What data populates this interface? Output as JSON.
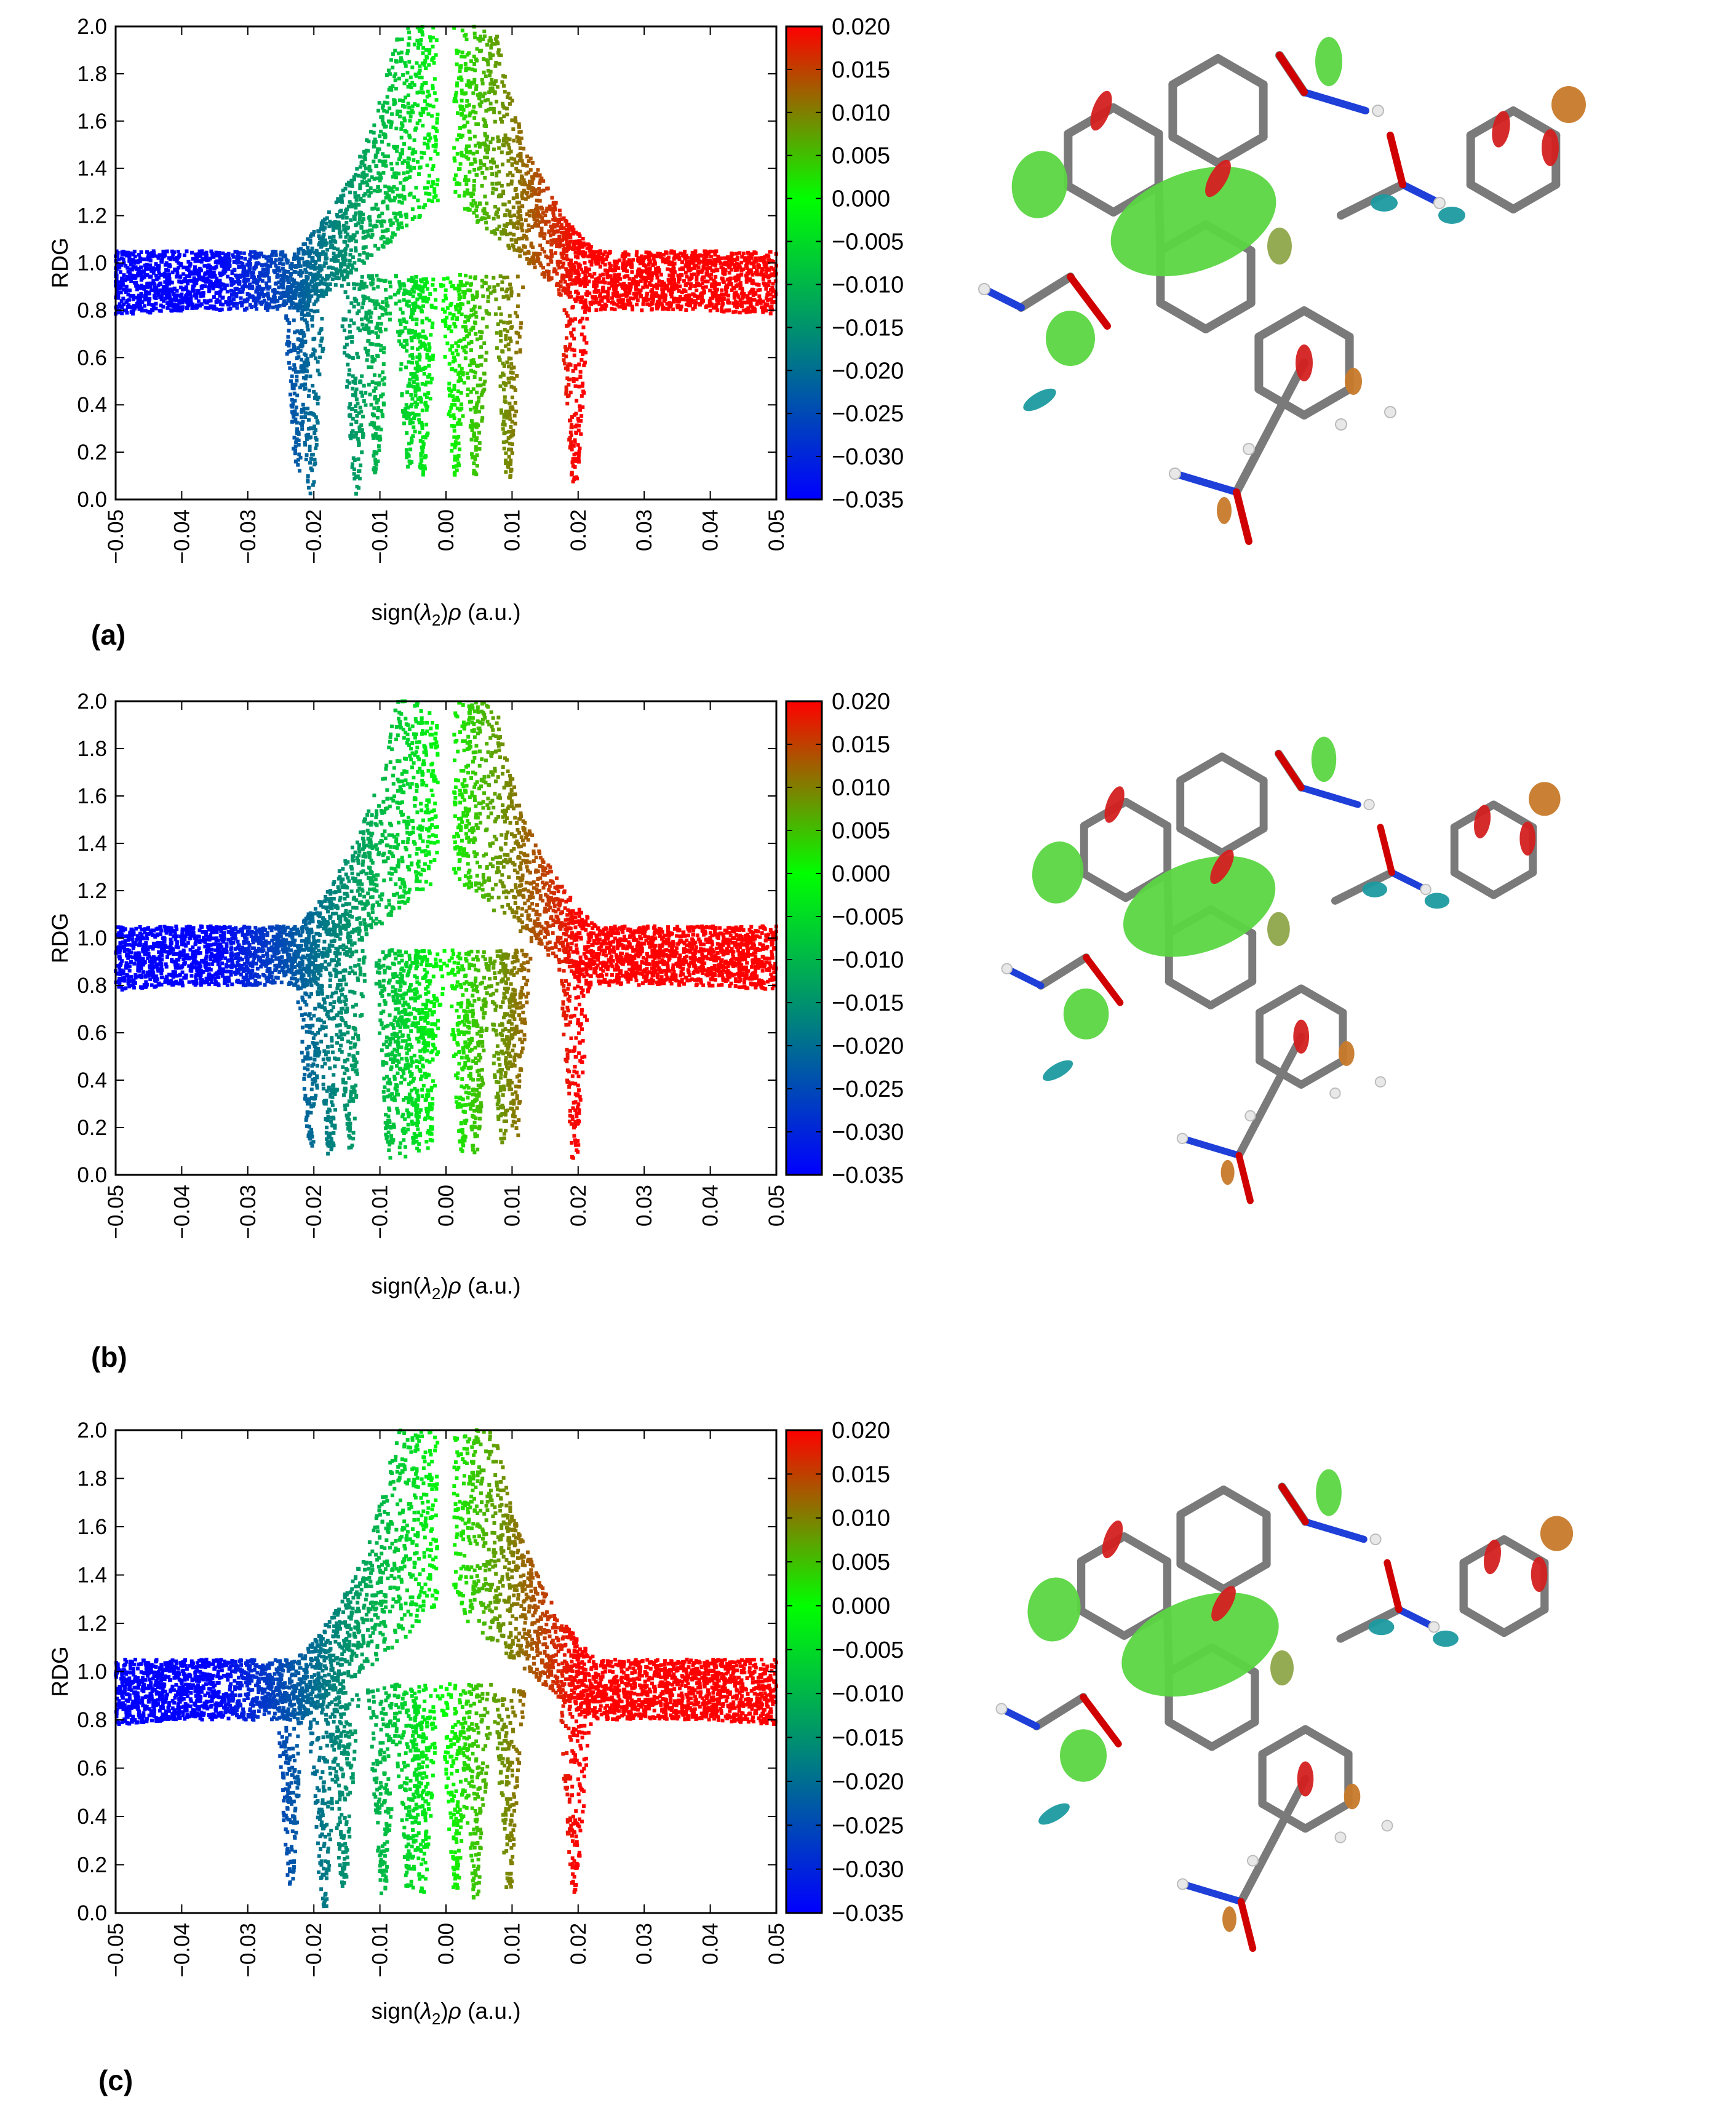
{
  "panels": [
    {
      "label": "(a)"
    },
    {
      "label": "(b)"
    },
    {
      "label": "(c)"
    }
  ],
  "chart_data": [
    {
      "type": "scatter",
      "panel": "(a)",
      "xlabel_parts": [
        "sign(",
        "λ",
        "2",
        ")",
        "ρ",
        " (a.u.)"
      ],
      "ylabel": "RDG",
      "xlim": [
        -0.05,
        0.05
      ],
      "ylim": [
        0.0,
        2.0
      ],
      "x_ticks": [
        "−0.05",
        "−0.04",
        "−0.03",
        "−0.02",
        "−0.01",
        "0.00",
        "0.01",
        "0.02",
        "0.03",
        "0.04",
        "0.05"
      ],
      "x_tick_values": [
        -0.05,
        -0.04,
        -0.03,
        -0.02,
        -0.01,
        0.0,
        0.01,
        0.02,
        0.03,
        0.04,
        0.05
      ],
      "y_ticks": [
        "0.0",
        "0.2",
        "0.4",
        "0.6",
        "0.8",
        "1.0",
        "1.2",
        "1.4",
        "1.6",
        "1.8",
        "2.0"
      ],
      "y_tick_values": [
        0.0,
        0.2,
        0.4,
        0.6,
        0.8,
        1.0,
        1.2,
        1.4,
        1.6,
        1.8,
        2.0
      ],
      "colorbar": {
        "range": [
          -0.035,
          0.02
        ],
        "ticks": [
          "0.020",
          "0.015",
          "0.010",
          "0.005",
          "0.000",
          "−0.005",
          "−0.010",
          "−0.015",
          "−0.020",
          "−0.025",
          "−0.030",
          "−0.035"
        ],
        "tick_values": [
          0.02,
          0.015,
          0.01,
          0.005,
          0.0,
          -0.005,
          -0.01,
          -0.015,
          -0.02,
          -0.025,
          -0.03,
          -0.035
        ],
        "colors": [
          "#0000ff",
          "#00ff00",
          "#ff0000"
        ]
      },
      "spikes": [
        {
          "x": -0.0225,
          "ymin": 0.12
        },
        {
          "x": -0.0205,
          "ymin": 0.02
        },
        {
          "x": -0.0135,
          "ymin": 0.02
        },
        {
          "x": -0.0105,
          "ymin": 0.1
        },
        {
          "x": -0.0055,
          "ymin": 0.12
        },
        {
          "x": -0.0035,
          "ymin": 0.1
        },
        {
          "x": 0.0015,
          "ymin": 0.08
        },
        {
          "x": 0.0045,
          "ymin": 0.1
        },
        {
          "x": 0.0095,
          "ymin": 0.08
        },
        {
          "x": 0.0195,
          "ymin": 0.06
        }
      ]
    },
    {
      "type": "scatter",
      "panel": "(b)",
      "xlabel_parts": [
        "sign(",
        "λ",
        "2",
        ")",
        "ρ",
        " (a.u.)"
      ],
      "ylabel": "RDG",
      "xlim": [
        -0.05,
        0.05
      ],
      "ylim": [
        0.0,
        2.0
      ],
      "x_ticks": [
        "−0.05",
        "−0.04",
        "−0.03",
        "−0.02",
        "−0.01",
        "0.00",
        "0.01",
        "0.02",
        "0.03",
        "0.04",
        "0.05"
      ],
      "x_tick_values": [
        -0.05,
        -0.04,
        -0.03,
        -0.02,
        -0.01,
        0.0,
        0.01,
        0.02,
        0.03,
        0.04,
        0.05
      ],
      "y_ticks": [
        "0.0",
        "0.2",
        "0.4",
        "0.6",
        "0.8",
        "1.0",
        "1.2",
        "1.4",
        "1.6",
        "1.8",
        "2.0"
      ],
      "y_tick_values": [
        0.0,
        0.2,
        0.4,
        0.6,
        0.8,
        1.0,
        1.2,
        1.4,
        1.6,
        1.8,
        2.0
      ],
      "colorbar": {
        "range": [
          -0.035,
          0.02
        ],
        "ticks": [
          "0.020",
          "0.015",
          "0.010",
          "0.005",
          "0.000",
          "−0.005",
          "−0.010",
          "−0.015",
          "−0.020",
          "−0.025",
          "−0.030",
          "−0.035"
        ],
        "tick_values": [
          0.02,
          0.015,
          0.01,
          0.005,
          0.0,
          -0.005,
          -0.01,
          -0.015,
          -0.02,
          -0.025,
          -0.03,
          -0.035
        ],
        "colors": [
          "#0000ff",
          "#00ff00",
          "#ff0000"
        ]
      },
      "spikes": [
        {
          "x": -0.0205,
          "ymin": 0.12
        },
        {
          "x": -0.0175,
          "ymin": 0.08
        },
        {
          "x": -0.0145,
          "ymin": 0.1
        },
        {
          "x": -0.0085,
          "ymin": 0.06
        },
        {
          "x": -0.0065,
          "ymin": 0.05
        },
        {
          "x": -0.0045,
          "ymin": 0.08
        },
        {
          "x": -0.0025,
          "ymin": 0.1
        },
        {
          "x": 0.0025,
          "ymin": 0.1
        },
        {
          "x": 0.0045,
          "ymin": 0.08
        },
        {
          "x": 0.0085,
          "ymin": 0.12
        },
        {
          "x": 0.0105,
          "ymin": 0.15
        },
        {
          "x": 0.0195,
          "ymin": 0.06
        }
      ]
    },
    {
      "type": "scatter",
      "panel": "(c)",
      "xlabel_parts": [
        "sign(",
        "λ",
        "2",
        ")",
        "ρ",
        " (a.u.)"
      ],
      "ylabel": "RDG",
      "xlim": [
        -0.05,
        0.05
      ],
      "ylim": [
        0.0,
        2.0
      ],
      "x_ticks": [
        "−0.05",
        "−0.04",
        "−0.03",
        "−0.02",
        "−0.01",
        "0.00",
        "0.01",
        "0.02",
        "0.03",
        "0.04",
        "0.05"
      ],
      "x_tick_values": [
        -0.05,
        -0.04,
        -0.03,
        -0.02,
        -0.01,
        0.0,
        0.01,
        0.02,
        0.03,
        0.04,
        0.05
      ],
      "y_ticks": [
        "0.0",
        "0.2",
        "0.4",
        "0.6",
        "0.8",
        "1.0",
        "1.2",
        "1.4",
        "1.6",
        "1.8",
        "2.0"
      ],
      "y_tick_values": [
        0.0,
        0.2,
        0.4,
        0.6,
        0.8,
        1.0,
        1.2,
        1.4,
        1.6,
        1.8,
        2.0
      ],
      "colorbar": {
        "range": [
          -0.035,
          0.02
        ],
        "ticks": [
          "0.020",
          "0.015",
          "0.010",
          "0.005",
          "0.000",
          "−0.005",
          "−0.010",
          "−0.015",
          "−0.020",
          "−0.025",
          "−0.030",
          "−0.035"
        ],
        "tick_values": [
          0.02,
          0.015,
          0.01,
          0.005,
          0.0,
          -0.005,
          -0.01,
          -0.015,
          -0.02,
          -0.025,
          -0.03,
          -0.035
        ],
        "colors": [
          "#0000ff",
          "#00ff00",
          "#ff0000"
        ]
      },
      "spikes": [
        {
          "x": -0.0235,
          "ymin": 0.12
        },
        {
          "x": -0.0185,
          "ymin": 0.02
        },
        {
          "x": -0.0155,
          "ymin": 0.1
        },
        {
          "x": -0.0095,
          "ymin": 0.08
        },
        {
          "x": -0.0055,
          "ymin": 0.05
        },
        {
          "x": -0.0035,
          "ymin": 0.08
        },
        {
          "x": 0.0015,
          "ymin": 0.08
        },
        {
          "x": 0.0045,
          "ymin": 0.04
        },
        {
          "x": 0.0095,
          "ymin": 0.1
        },
        {
          "x": 0.0195,
          "ymin": 0.06
        }
      ]
    }
  ]
}
